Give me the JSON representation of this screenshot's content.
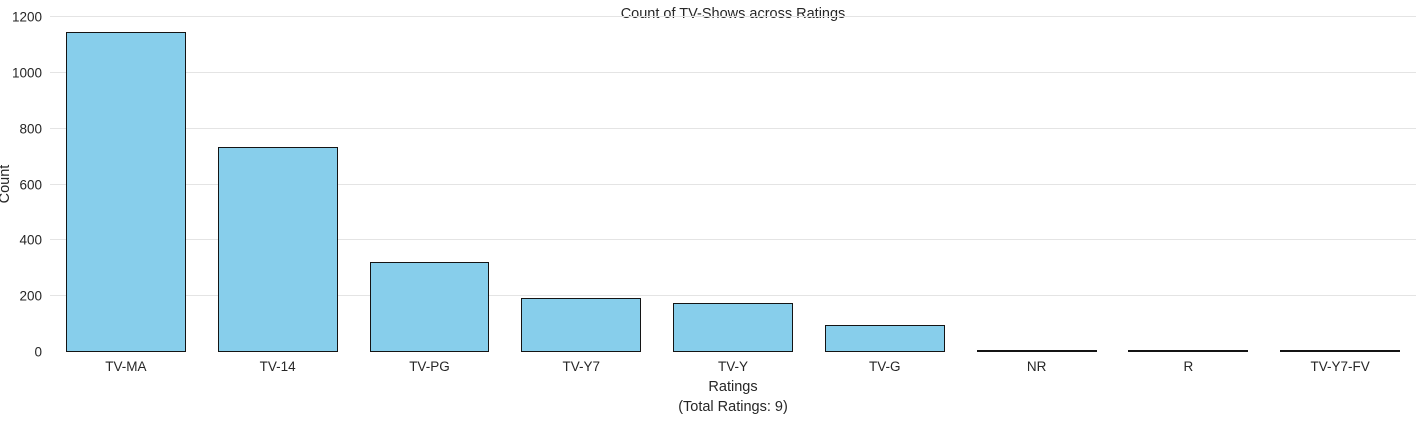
{
  "figure": {
    "title": "Count of TV-Shows across Ratings",
    "ylabel": "Count",
    "xlabel": "Ratings",
    "xlabel_sub": "(Total Ratings: 9)"
  },
  "colors": {
    "bar_fill": "#87CEEB",
    "bar_edge": "#141414",
    "grid": "#e4e4e4",
    "text": "#262626",
    "background": "#ffffff"
  },
  "chart_data": {
    "type": "bar",
    "title": "Count of TV-Shows across Ratings",
    "xlabel": "Ratings (Total Ratings: 9)",
    "ylabel": "Count",
    "categories": [
      "TV-MA",
      "TV-14",
      "TV-PG",
      "TV-Y7",
      "TV-Y",
      "TV-G",
      "NR",
      "R",
      "TV-Y7-FV"
    ],
    "values": [
      1145,
      733,
      323,
      195,
      176,
      95,
      7,
      3,
      2
    ],
    "ylim": [
      0,
      1200
    ],
    "yticks": [
      0,
      200,
      400,
      600,
      800,
      1000,
      1200
    ],
    "grid": "horizontal",
    "legend": "none",
    "total_ratings": 9
  }
}
